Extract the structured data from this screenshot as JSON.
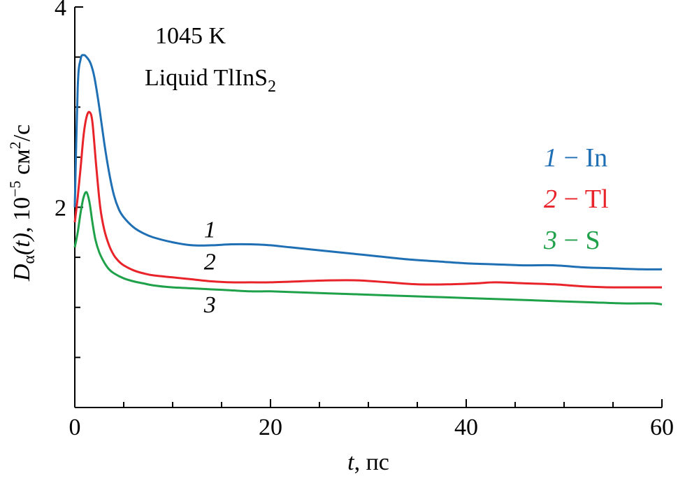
{
  "chart_data": {
    "type": "line",
    "annotation": {
      "temperature": "1045 K",
      "system_text": "Liquid TlInS",
      "system_sub": "2"
    },
    "xlabel": {
      "var": "t",
      "unit": ", пс"
    },
    "ylabel": {
      "symbol": "D",
      "sub": "α",
      "arg": "(t)",
      "unit_pre": ", 10",
      "unit_exp": "−5",
      "unit_mid": " см",
      "unit_exp2": "2",
      "unit_post": "/с"
    },
    "xlim": [
      0,
      60
    ],
    "ylim": [
      0,
      4
    ],
    "x_ticks": [
      0,
      20,
      40,
      60
    ],
    "y_ticks": [
      2,
      4
    ],
    "grid": false,
    "legend": {
      "placement": "right",
      "entries": [
        {
          "num": "1",
          "dash": " − ",
          "label": "In",
          "color": "#1f6fb4"
        },
        {
          "num": "2",
          "dash": " − ",
          "label": "Tl",
          "color": "#e8232a"
        },
        {
          "num": "3",
          "dash": " − ",
          "label": "S",
          "color": "#1fa14a"
        }
      ]
    },
    "curve_labels": [
      {
        "text": "1",
        "x": 13.2,
        "y": 1.7
      },
      {
        "text": "2",
        "x": 13.2,
        "y": 1.38
      },
      {
        "text": "3",
        "x": 13.2,
        "y": 0.95
      }
    ],
    "series": [
      {
        "name": "In",
        "color": "#1f6fb4",
        "x": [
          0,
          0.3,
          0.6,
          0.9,
          1.2,
          1.6,
          2.0,
          2.5,
          3.0,
          3.5,
          4.0,
          4.5,
          5.0,
          6.0,
          7.0,
          8.0,
          10.0,
          12.0,
          14.0,
          16.0,
          18.0,
          20.0,
          22.0,
          25.0,
          28.0,
          31.0,
          34.0,
          37.0,
          40.0,
          43.0,
          46.0,
          49.0,
          52.0,
          55.0,
          58.0,
          60.0
        ],
        "y": [
          2.0,
          3.2,
          3.48,
          3.52,
          3.5,
          3.44,
          3.3,
          3.0,
          2.65,
          2.35,
          2.12,
          1.98,
          1.9,
          1.8,
          1.74,
          1.7,
          1.65,
          1.62,
          1.62,
          1.63,
          1.63,
          1.62,
          1.6,
          1.57,
          1.54,
          1.51,
          1.48,
          1.46,
          1.44,
          1.43,
          1.42,
          1.42,
          1.4,
          1.39,
          1.38,
          1.38
        ]
      },
      {
        "name": "Tl",
        "color": "#e8232a",
        "x": [
          0,
          0.3,
          0.6,
          0.9,
          1.2,
          1.5,
          1.8,
          2.2,
          2.6,
          3.0,
          3.5,
          4.0,
          4.5,
          5.0,
          6.0,
          7.0,
          8.0,
          10.0,
          12.0,
          14.0,
          16.0,
          18.0,
          20.0,
          23.0,
          26.0,
          29.0,
          32.0,
          35.0,
          38.0,
          41.0,
          43.0,
          46.0,
          49.0,
          52.0,
          55.0,
          58.0,
          60.0
        ],
        "y": [
          1.85,
          2.1,
          2.4,
          2.72,
          2.9,
          2.95,
          2.85,
          2.4,
          2.0,
          1.78,
          1.62,
          1.52,
          1.46,
          1.42,
          1.37,
          1.34,
          1.32,
          1.3,
          1.28,
          1.26,
          1.25,
          1.25,
          1.25,
          1.26,
          1.27,
          1.27,
          1.25,
          1.23,
          1.23,
          1.24,
          1.25,
          1.24,
          1.23,
          1.21,
          1.2,
          1.2,
          1.2
        ]
      },
      {
        "name": "S",
        "color": "#1fa14a",
        "x": [
          0,
          0.3,
          0.6,
          0.9,
          1.2,
          1.5,
          1.8,
          2.1,
          2.5,
          3.0,
          3.5,
          4.0,
          5.0,
          6.0,
          7.0,
          8.0,
          10.0,
          12.0,
          14.0,
          16.0,
          18.0,
          20.0,
          23.0,
          26.0,
          29.0,
          32.0,
          35.0,
          38.0,
          41.0,
          44.0,
          47.0,
          50.0,
          53.0,
          56.0,
          59.0,
          60.0
        ],
        "y": [
          1.6,
          1.75,
          1.95,
          2.1,
          2.15,
          2.05,
          1.85,
          1.68,
          1.55,
          1.45,
          1.38,
          1.34,
          1.29,
          1.26,
          1.24,
          1.22,
          1.2,
          1.19,
          1.18,
          1.17,
          1.16,
          1.16,
          1.15,
          1.14,
          1.13,
          1.12,
          1.11,
          1.1,
          1.09,
          1.08,
          1.07,
          1.06,
          1.05,
          1.04,
          1.04,
          1.03
        ]
      }
    ]
  }
}
